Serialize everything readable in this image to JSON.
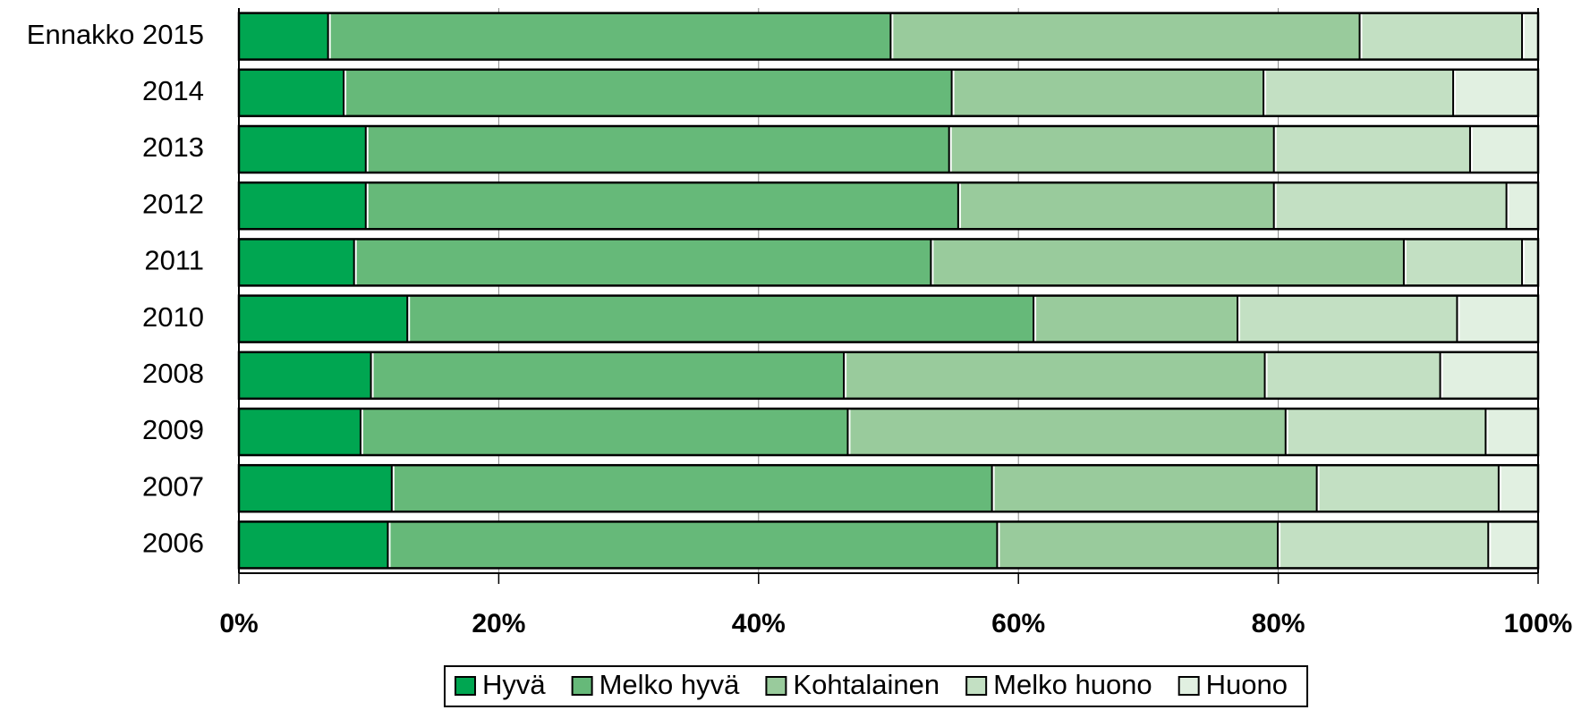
{
  "chart_data": {
    "type": "stacked_barh",
    "categories": [
      "Ennakko 2015",
      "2014",
      "2013",
      "2012",
      "2011",
      "2010",
      "2008",
      "2009",
      "2007",
      "2006"
    ],
    "series": [
      {
        "name": "Hyvä",
        "color": "#00a651",
        "values": [
          7.0,
          8.2,
          9.9,
          9.9,
          9.0,
          13.1,
          10.3,
          9.5,
          11.9,
          11.6
        ]
      },
      {
        "name": "Melko hyvä",
        "color": "#66b979",
        "values": [
          43.3,
          46.8,
          44.9,
          45.6,
          44.4,
          48.2,
          36.4,
          37.5,
          46.2,
          46.9
        ]
      },
      {
        "name": "Kohtalainen",
        "color": "#99cb9c",
        "values": [
          36.1,
          24.0,
          25.0,
          24.3,
          36.4,
          15.7,
          32.4,
          33.7,
          25.0,
          21.6
        ]
      },
      {
        "name": "Melko huono",
        "color": "#c3e0c3",
        "values": [
          12.5,
          14.6,
          15.1,
          17.9,
          9.1,
          16.9,
          13.5,
          15.4,
          14.0,
          16.2
        ]
      },
      {
        "name": "Huono",
        "color": "#e1f0e1",
        "values": [
          1.1,
          6.4,
          5.1,
          2.3,
          1.1,
          6.1,
          7.4,
          3.9,
          2.9,
          3.7
        ]
      }
    ],
    "xlim": [
      0,
      100
    ],
    "xticks": [
      {
        "value": 0,
        "label": "0%"
      },
      {
        "value": 20,
        "label": "20%"
      },
      {
        "value": 40,
        "label": "40%"
      },
      {
        "value": 60,
        "label": "60%"
      },
      {
        "value": 80,
        "label": "80%"
      },
      {
        "value": 100,
        "label": "100%"
      }
    ],
    "grid": true,
    "legend": "bottom"
  }
}
